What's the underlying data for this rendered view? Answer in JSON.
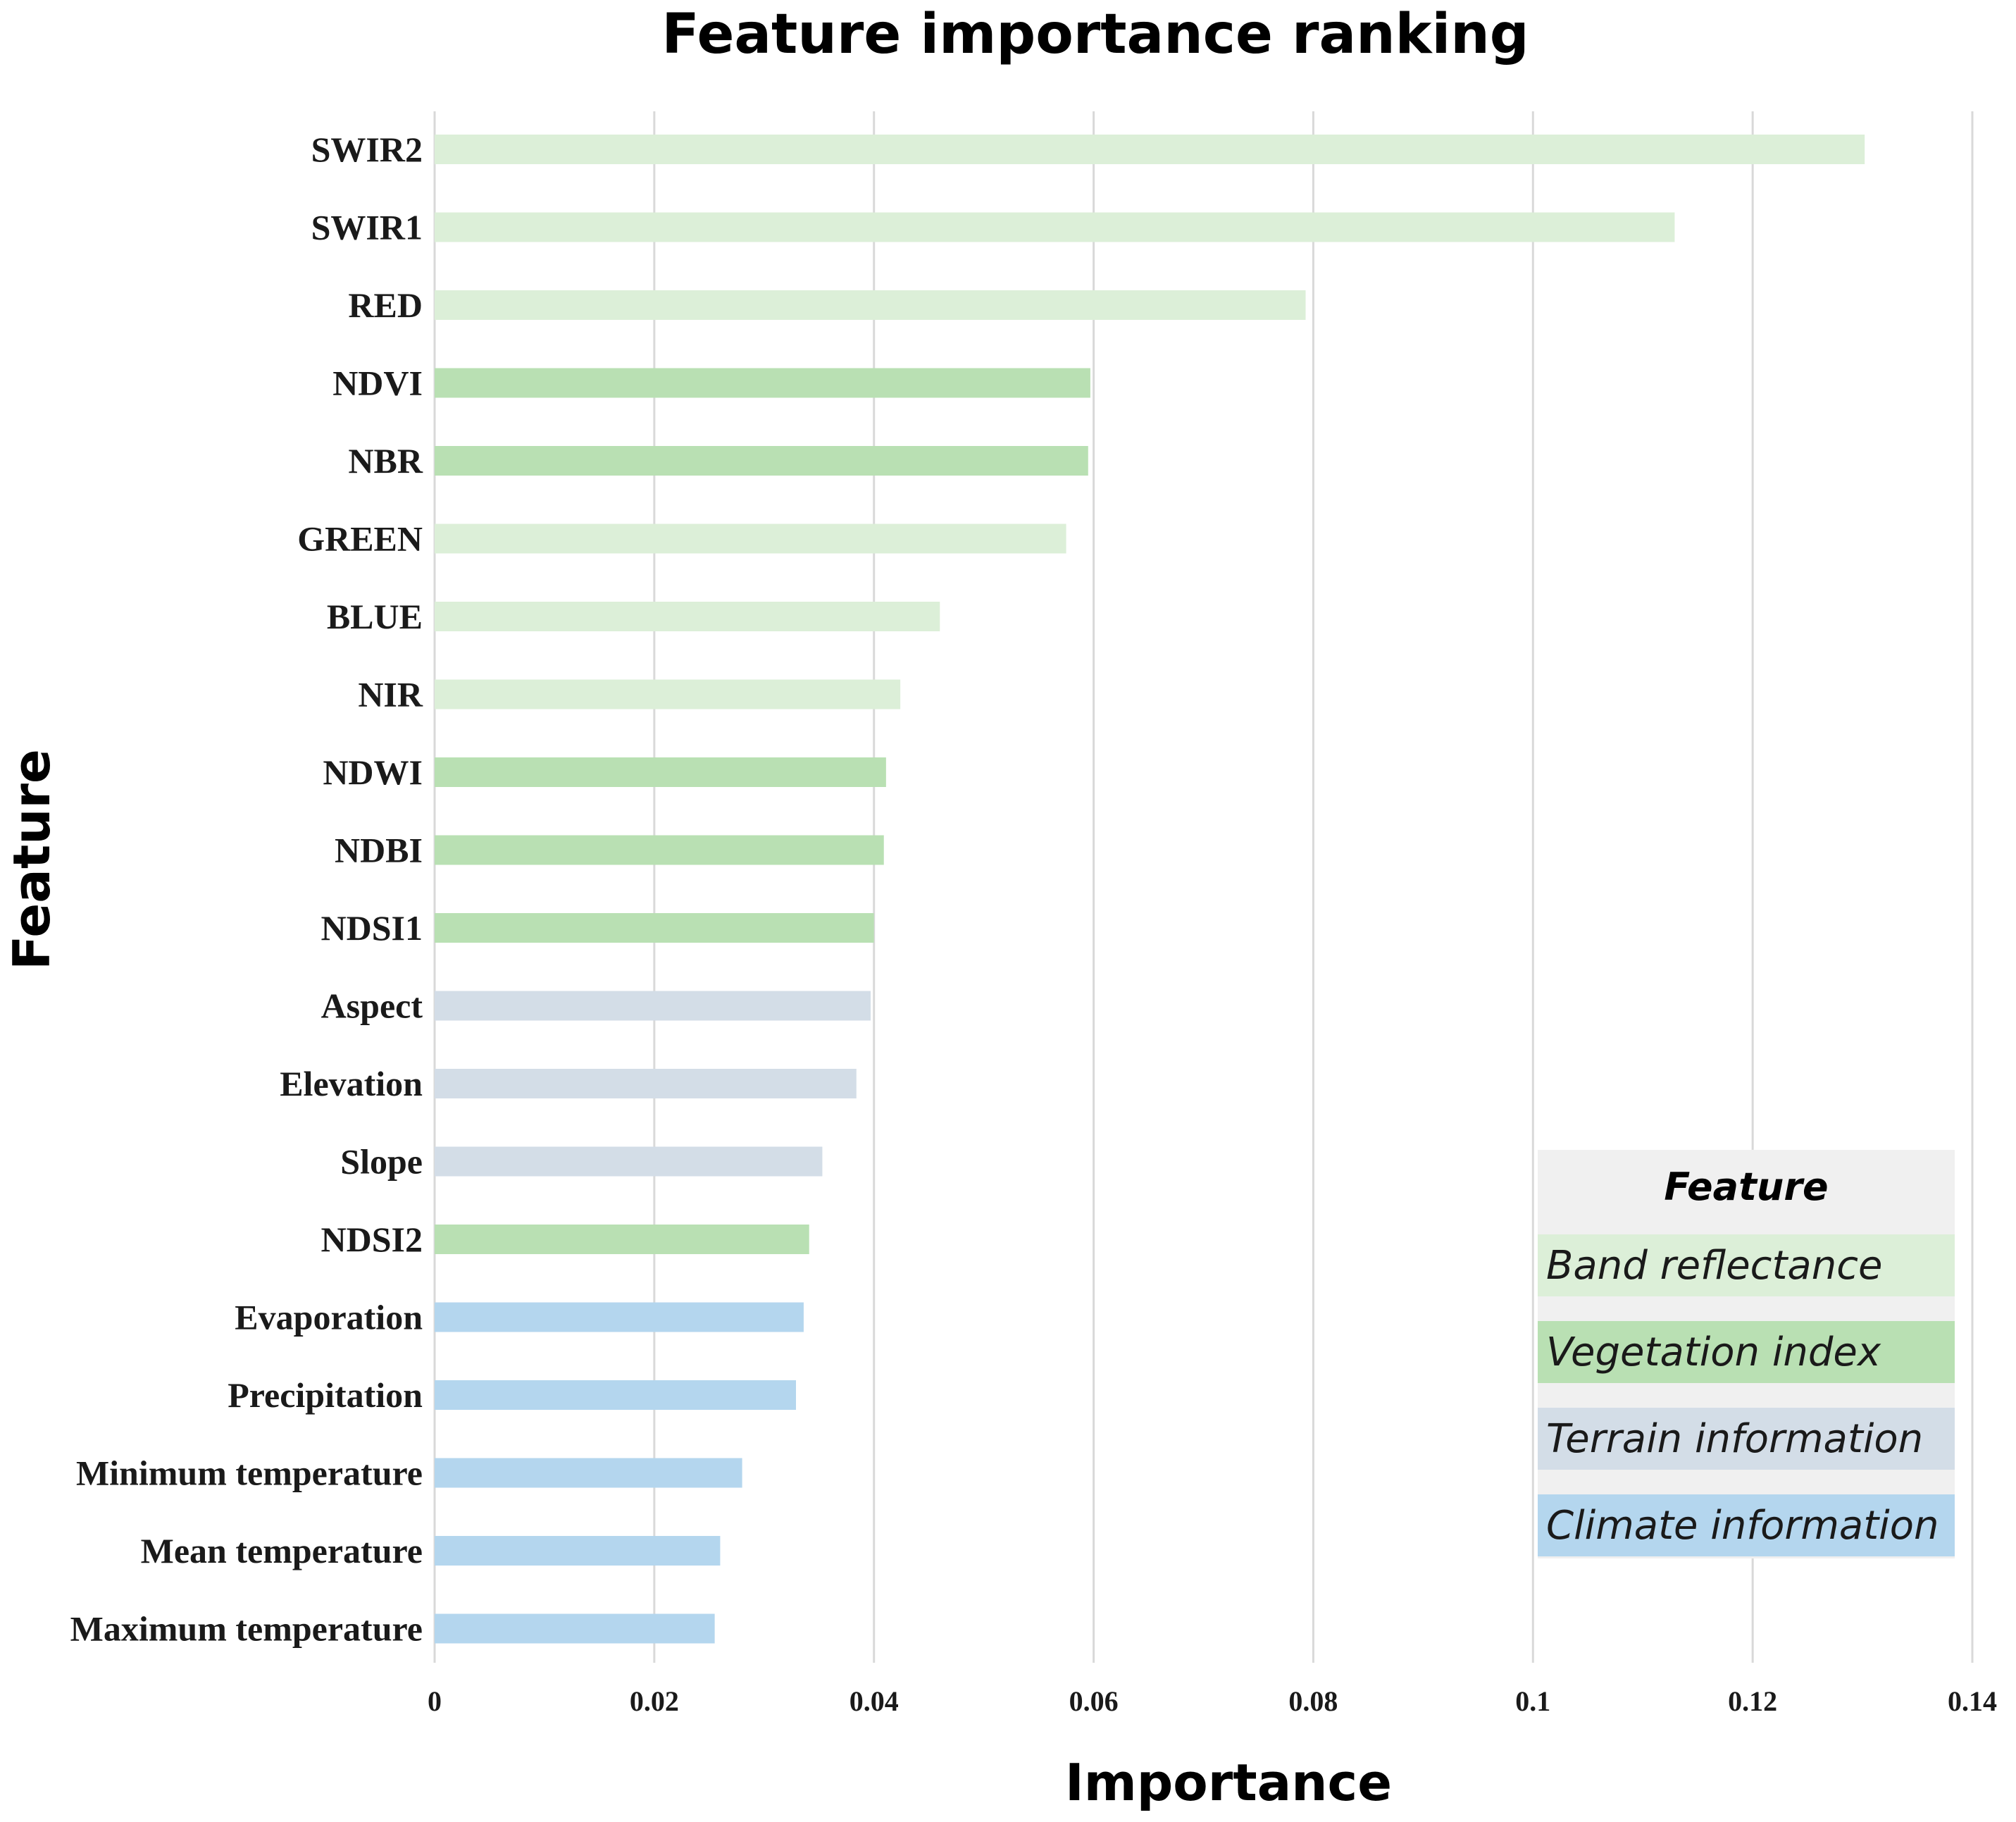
{
  "chart_data": {
    "type": "bar",
    "orientation": "horizontal",
    "title": "Feature importance ranking",
    "xlabel": "Importance",
    "ylabel": "Feature",
    "xlim": [
      0,
      0.14
    ],
    "xticks": [
      0,
      0.02,
      0.04,
      0.06,
      0.08,
      0.1,
      0.12,
      0.14
    ],
    "xtick_labels": [
      "0",
      "0.02",
      "0.04",
      "0.06",
      "0.08",
      "0.1",
      "0.12",
      "0.14"
    ],
    "grid": "vertical",
    "legend_position": "bottom-right",
    "legend_title": "Feature",
    "groups": [
      {
        "key": "band",
        "name": "Band reflectance",
        "color": "#dcefd8"
      },
      {
        "key": "veg",
        "name": "Vegetation index",
        "color": "#b9e0b3"
      },
      {
        "key": "terrain",
        "name": "Terrain information",
        "color": "#d3dde7"
      },
      {
        "key": "climate",
        "name": "Climate information",
        "color": "#b4d6ee"
      }
    ],
    "bars": [
      {
        "label": "SWIR2",
        "value": 0.1302,
        "group": "band"
      },
      {
        "label": "SWIR1",
        "value": 0.1129,
        "group": "band"
      },
      {
        "label": "RED",
        "value": 0.0793,
        "group": "band"
      },
      {
        "label": "NDVI",
        "value": 0.0597,
        "group": "veg"
      },
      {
        "label": "NBR",
        "value": 0.0595,
        "group": "veg"
      },
      {
        "label": "GREEN",
        "value": 0.0575,
        "group": "band"
      },
      {
        "label": "BLUE",
        "value": 0.046,
        "group": "band"
      },
      {
        "label": "NIR",
        "value": 0.0424,
        "group": "band"
      },
      {
        "label": "NDWI",
        "value": 0.0411,
        "group": "veg"
      },
      {
        "label": "NDBI",
        "value": 0.0409,
        "group": "veg"
      },
      {
        "label": "NDSI1",
        "value": 0.04,
        "group": "veg"
      },
      {
        "label": "Aspect",
        "value": 0.0397,
        "group": "terrain"
      },
      {
        "label": "Elevation",
        "value": 0.0384,
        "group": "terrain"
      },
      {
        "label": "Slope",
        "value": 0.0353,
        "group": "terrain"
      },
      {
        "label": "NDSI2",
        "value": 0.0341,
        "group": "veg"
      },
      {
        "label": "Evaporation",
        "value": 0.0336,
        "group": "climate"
      },
      {
        "label": "Precipitation",
        "value": 0.0329,
        "group": "climate"
      },
      {
        "label": "Minimum temperature",
        "value": 0.028,
        "group": "climate"
      },
      {
        "label": "Mean temperature",
        "value": 0.026,
        "group": "climate"
      },
      {
        "label": "Maximum temperature",
        "value": 0.0255,
        "group": "climate"
      }
    ]
  }
}
